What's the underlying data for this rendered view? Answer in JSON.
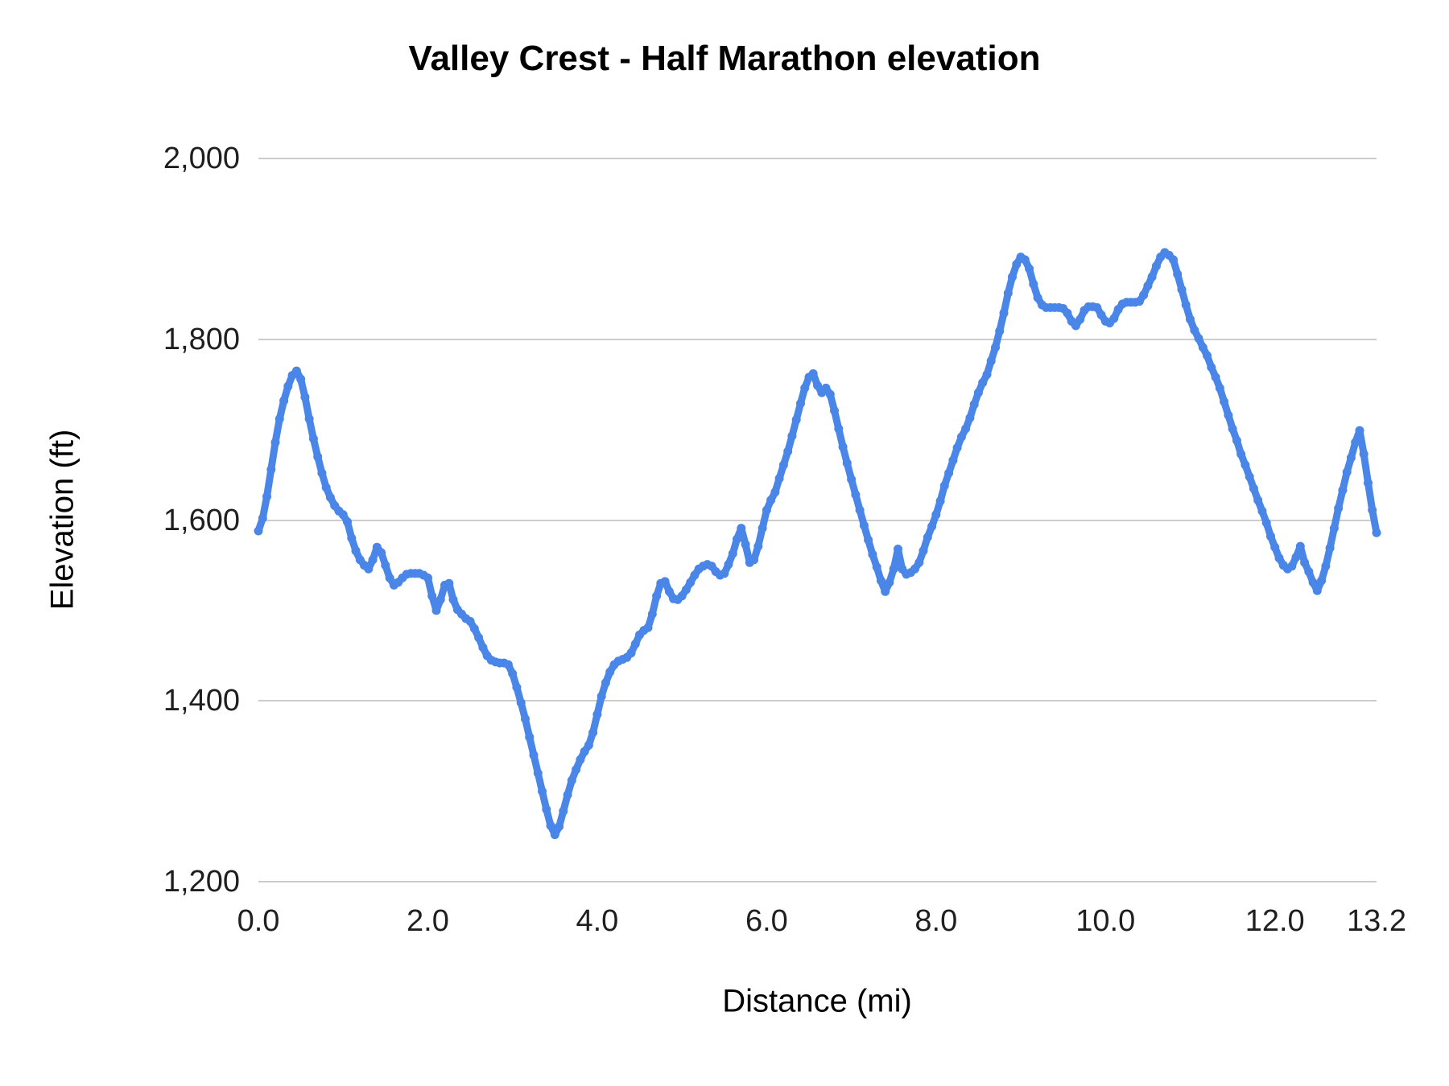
{
  "page": {
    "background": "#ffffff"
  },
  "chart_data": {
    "type": "line",
    "title": "Valley Crest - Half Marathon elevation",
    "xlabel": "Distance (mi)",
    "ylabel": "Elevation (ft)",
    "xlim": [
      0,
      13.2
    ],
    "ylim": [
      1200,
      2000
    ],
    "grid": "horizontal-only",
    "gridline_color": "#cccccc",
    "line_color": "#4a86e8",
    "marker": "circle",
    "legend": "none",
    "xticks": [
      {
        "value": 0,
        "label": "0.0"
      },
      {
        "value": 2,
        "label": "2.0"
      },
      {
        "value": 4,
        "label": "4.0"
      },
      {
        "value": 6,
        "label": "6.0"
      },
      {
        "value": 8,
        "label": "8.0"
      },
      {
        "value": 10,
        "label": "10.0"
      },
      {
        "value": 12,
        "label": "12.0"
      },
      {
        "value": 13.2,
        "label": "13.2"
      }
    ],
    "yticks": [
      {
        "value": 1200,
        "label": "1,200"
      },
      {
        "value": 1400,
        "label": "1,400"
      },
      {
        "value": 1600,
        "label": "1,600"
      },
      {
        "value": 1800,
        "label": "1,800"
      },
      {
        "value": 2000,
        "label": "2,000"
      }
    ],
    "series": [
      {
        "name": "Elevation",
        "points": [
          [
            0.0,
            1588
          ],
          [
            0.05,
            1602
          ],
          [
            0.1,
            1626
          ],
          [
            0.15,
            1656
          ],
          [
            0.2,
            1686
          ],
          [
            0.25,
            1712
          ],
          [
            0.3,
            1732
          ],
          [
            0.35,
            1748
          ],
          [
            0.4,
            1760
          ],
          [
            0.45,
            1765
          ],
          [
            0.5,
            1756
          ],
          [
            0.55,
            1736
          ],
          [
            0.6,
            1712
          ],
          [
            0.65,
            1690
          ],
          [
            0.7,
            1670
          ],
          [
            0.75,
            1652
          ],
          [
            0.8,
            1636
          ],
          [
            0.85,
            1625
          ],
          [
            0.9,
            1616
          ],
          [
            0.95,
            1610
          ],
          [
            1.0,
            1606
          ],
          [
            1.05,
            1598
          ],
          [
            1.1,
            1580
          ],
          [
            1.15,
            1566
          ],
          [
            1.2,
            1556
          ],
          [
            1.25,
            1550
          ],
          [
            1.3,
            1546
          ],
          [
            1.35,
            1556
          ],
          [
            1.4,
            1570
          ],
          [
            1.45,
            1564
          ],
          [
            1.5,
            1550
          ],
          [
            1.55,
            1536
          ],
          [
            1.6,
            1528
          ],
          [
            1.65,
            1531
          ],
          [
            1.7,
            1536
          ],
          [
            1.75,
            1540
          ],
          [
            1.8,
            1541
          ],
          [
            1.85,
            1541
          ],
          [
            1.9,
            1541
          ],
          [
            1.95,
            1539
          ],
          [
            2.0,
            1536
          ],
          [
            2.05,
            1516
          ],
          [
            2.1,
            1500
          ],
          [
            2.15,
            1512
          ],
          [
            2.2,
            1528
          ],
          [
            2.25,
            1530
          ],
          [
            2.3,
            1512
          ],
          [
            2.35,
            1501
          ],
          [
            2.4,
            1496
          ],
          [
            2.45,
            1491
          ],
          [
            2.5,
            1488
          ],
          [
            2.55,
            1480
          ],
          [
            2.6,
            1470
          ],
          [
            2.65,
            1459
          ],
          [
            2.7,
            1450
          ],
          [
            2.75,
            1445
          ],
          [
            2.8,
            1443
          ],
          [
            2.85,
            1442
          ],
          [
            2.9,
            1442
          ],
          [
            2.95,
            1440
          ],
          [
            3.0,
            1430
          ],
          [
            3.05,
            1415
          ],
          [
            3.1,
            1398
          ],
          [
            3.15,
            1380
          ],
          [
            3.2,
            1360
          ],
          [
            3.25,
            1340
          ],
          [
            3.3,
            1320
          ],
          [
            3.35,
            1300
          ],
          [
            3.4,
            1280
          ],
          [
            3.45,
            1262
          ],
          [
            3.5,
            1252
          ],
          [
            3.55,
            1261
          ],
          [
            3.6,
            1278
          ],
          [
            3.65,
            1296
          ],
          [
            3.7,
            1312
          ],
          [
            3.75,
            1324
          ],
          [
            3.8,
            1335
          ],
          [
            3.85,
            1344
          ],
          [
            3.9,
            1351
          ],
          [
            3.95,
            1365
          ],
          [
            4.0,
            1385
          ],
          [
            4.05,
            1405
          ],
          [
            4.1,
            1420
          ],
          [
            4.15,
            1432
          ],
          [
            4.2,
            1440
          ],
          [
            4.25,
            1444
          ],
          [
            4.3,
            1446
          ],
          [
            4.35,
            1448
          ],
          [
            4.4,
            1453
          ],
          [
            4.45,
            1463
          ],
          [
            4.5,
            1473
          ],
          [
            4.55,
            1478
          ],
          [
            4.6,
            1481
          ],
          [
            4.65,
            1496
          ],
          [
            4.7,
            1516
          ],
          [
            4.75,
            1530
          ],
          [
            4.8,
            1532
          ],
          [
            4.85,
            1521
          ],
          [
            4.9,
            1513
          ],
          [
            4.95,
            1512
          ],
          [
            5.0,
            1516
          ],
          [
            5.05,
            1523
          ],
          [
            5.1,
            1531
          ],
          [
            5.15,
            1539
          ],
          [
            5.2,
            1546
          ],
          [
            5.25,
            1549
          ],
          [
            5.3,
            1551
          ],
          [
            5.35,
            1549
          ],
          [
            5.4,
            1543
          ],
          [
            5.45,
            1539
          ],
          [
            5.5,
            1541
          ],
          [
            5.55,
            1551
          ],
          [
            5.6,
            1563
          ],
          [
            5.65,
            1579
          ],
          [
            5.7,
            1591
          ],
          [
            5.75,
            1573
          ],
          [
            5.8,
            1553
          ],
          [
            5.85,
            1556
          ],
          [
            5.9,
            1571
          ],
          [
            5.95,
            1591
          ],
          [
            6.0,
            1611
          ],
          [
            6.05,
            1622
          ],
          [
            6.1,
            1631
          ],
          [
            6.15,
            1646
          ],
          [
            6.2,
            1661
          ],
          [
            6.25,
            1676
          ],
          [
            6.3,
            1693
          ],
          [
            6.35,
            1711
          ],
          [
            6.4,
            1729
          ],
          [
            6.45,
            1746
          ],
          [
            6.5,
            1758
          ],
          [
            6.55,
            1762
          ],
          [
            6.6,
            1749
          ],
          [
            6.65,
            1741
          ],
          [
            6.7,
            1746
          ],
          [
            6.75,
            1739
          ],
          [
            6.8,
            1721
          ],
          [
            6.85,
            1701
          ],
          [
            6.9,
            1681
          ],
          [
            6.95,
            1663
          ],
          [
            7.0,
            1645
          ],
          [
            7.05,
            1628
          ],
          [
            7.1,
            1611
          ],
          [
            7.15,
            1594
          ],
          [
            7.2,
            1578
          ],
          [
            7.25,
            1562
          ],
          [
            7.3,
            1548
          ],
          [
            7.35,
            1533
          ],
          [
            7.4,
            1521
          ],
          [
            7.45,
            1531
          ],
          [
            7.5,
            1546
          ],
          [
            7.55,
            1568
          ],
          [
            7.6,
            1546
          ],
          [
            7.65,
            1540
          ],
          [
            7.7,
            1542
          ],
          [
            7.75,
            1546
          ],
          [
            7.8,
            1553
          ],
          [
            7.85,
            1566
          ],
          [
            7.9,
            1581
          ],
          [
            7.95,
            1593
          ],
          [
            8.0,
            1606
          ],
          [
            8.05,
            1621
          ],
          [
            8.1,
            1638
          ],
          [
            8.15,
            1652
          ],
          [
            8.2,
            1666
          ],
          [
            8.25,
            1680
          ],
          [
            8.3,
            1692
          ],
          [
            8.35,
            1701
          ],
          [
            8.4,
            1713
          ],
          [
            8.45,
            1728
          ],
          [
            8.5,
            1741
          ],
          [
            8.55,
            1752
          ],
          [
            8.6,
            1761
          ],
          [
            8.65,
            1776
          ],
          [
            8.7,
            1791
          ],
          [
            8.75,
            1809
          ],
          [
            8.8,
            1829
          ],
          [
            8.85,
            1851
          ],
          [
            8.9,
            1869
          ],
          [
            8.95,
            1883
          ],
          [
            9.0,
            1891
          ],
          [
            9.05,
            1888
          ],
          [
            9.1,
            1878
          ],
          [
            9.15,
            1861
          ],
          [
            9.2,
            1846
          ],
          [
            9.25,
            1838
          ],
          [
            9.3,
            1835
          ],
          [
            9.35,
            1835
          ],
          [
            9.4,
            1835
          ],
          [
            9.45,
            1835
          ],
          [
            9.5,
            1834
          ],
          [
            9.55,
            1829
          ],
          [
            9.6,
            1820
          ],
          [
            9.65,
            1815
          ],
          [
            9.7,
            1822
          ],
          [
            9.75,
            1832
          ],
          [
            9.8,
            1836
          ],
          [
            9.85,
            1836
          ],
          [
            9.9,
            1835
          ],
          [
            9.95,
            1827
          ],
          [
            10.0,
            1820
          ],
          [
            10.05,
            1818
          ],
          [
            10.1,
            1823
          ],
          [
            10.15,
            1833
          ],
          [
            10.2,
            1839
          ],
          [
            10.25,
            1841
          ],
          [
            10.3,
            1841
          ],
          [
            10.35,
            1841
          ],
          [
            10.4,
            1842
          ],
          [
            10.45,
            1849
          ],
          [
            10.5,
            1859
          ],
          [
            10.55,
            1869
          ],
          [
            10.6,
            1881
          ],
          [
            10.65,
            1891
          ],
          [
            10.7,
            1896
          ],
          [
            10.75,
            1893
          ],
          [
            10.8,
            1888
          ],
          [
            10.85,
            1872
          ],
          [
            10.9,
            1855
          ],
          [
            10.95,
            1838
          ],
          [
            11.0,
            1822
          ],
          [
            11.05,
            1810
          ],
          [
            11.1,
            1801
          ],
          [
            11.15,
            1791
          ],
          [
            11.2,
            1782
          ],
          [
            11.25,
            1769
          ],
          [
            11.3,
            1758
          ],
          [
            11.35,
            1746
          ],
          [
            11.4,
            1731
          ],
          [
            11.45,
            1716
          ],
          [
            11.5,
            1701
          ],
          [
            11.55,
            1688
          ],
          [
            11.6,
            1673
          ],
          [
            11.65,
            1661
          ],
          [
            11.7,
            1648
          ],
          [
            11.75,
            1635
          ],
          [
            11.8,
            1622
          ],
          [
            11.85,
            1610
          ],
          [
            11.9,
            1597
          ],
          [
            11.95,
            1582
          ],
          [
            12.0,
            1570
          ],
          [
            12.05,
            1558
          ],
          [
            12.1,
            1550
          ],
          [
            12.15,
            1546
          ],
          [
            12.2,
            1549
          ],
          [
            12.25,
            1559
          ],
          [
            12.3,
            1571
          ],
          [
            12.35,
            1553
          ],
          [
            12.4,
            1543
          ],
          [
            12.45,
            1531
          ],
          [
            12.5,
            1522
          ],
          [
            12.55,
            1533
          ],
          [
            12.6,
            1549
          ],
          [
            12.65,
            1569
          ],
          [
            12.7,
            1591
          ],
          [
            12.75,
            1613
          ],
          [
            12.8,
            1633
          ],
          [
            12.85,
            1653
          ],
          [
            12.9,
            1669
          ],
          [
            12.95,
            1686
          ],
          [
            13.0,
            1699
          ],
          [
            13.05,
            1673
          ],
          [
            13.1,
            1641
          ],
          [
            13.15,
            1611
          ],
          [
            13.2,
            1586
          ]
        ]
      }
    ]
  }
}
